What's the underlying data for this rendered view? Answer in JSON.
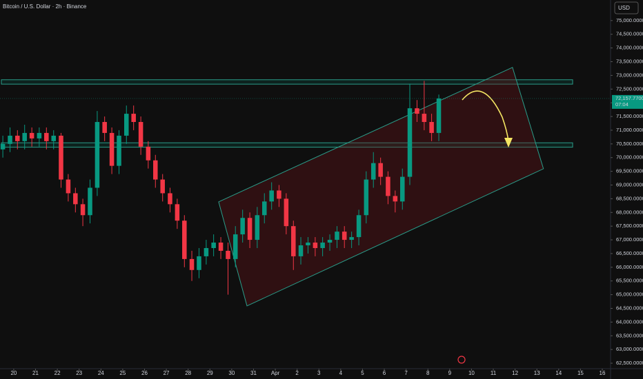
{
  "chart_data": {
    "type": "candlestick",
    "title": "Bitcoin / U.S. Dollar · 2h · Binance",
    "currency": "USD",
    "up_color": "#089981",
    "down_color": "#f23645",
    "grid": false,
    "xlim": [
      -0.63,
      27.38
    ],
    "ylim": [
      62300,
      75750
    ],
    "xticks": [
      {
        "value": 0,
        "label": "20"
      },
      {
        "value": 1,
        "label": "21"
      },
      {
        "value": 2,
        "label": "22"
      },
      {
        "value": 3,
        "label": "23"
      },
      {
        "value": 4,
        "label": "24"
      },
      {
        "value": 5,
        "label": "25"
      },
      {
        "value": 6,
        "label": "26"
      },
      {
        "value": 7,
        "label": "27"
      },
      {
        "value": 8,
        "label": "28"
      },
      {
        "value": 9,
        "label": "29"
      },
      {
        "value": 10,
        "label": "30"
      },
      {
        "value": 11,
        "label": "31"
      },
      {
        "value": 12,
        "label": "Apr"
      },
      {
        "value": 13,
        "label": "2"
      },
      {
        "value": 14,
        "label": "3"
      },
      {
        "value": 15,
        "label": "4"
      },
      {
        "value": 16,
        "label": "5"
      },
      {
        "value": 17,
        "label": "6"
      },
      {
        "value": 18,
        "label": "7"
      },
      {
        "value": 19,
        "label": "8"
      },
      {
        "value": 20,
        "label": "9"
      },
      {
        "value": 21,
        "label": "10"
      },
      {
        "value": 22,
        "label": "11"
      },
      {
        "value": 23,
        "label": "12"
      },
      {
        "value": 24,
        "label": "13"
      },
      {
        "value": 25,
        "label": "14"
      },
      {
        "value": 26,
        "label": "15"
      },
      {
        "value": 27,
        "label": "16"
      }
    ],
    "yticks": [
      {
        "value": 75000,
        "label": "75,000.0000"
      },
      {
        "value": 74500,
        "label": "74,500.0000"
      },
      {
        "value": 74000,
        "label": "74,000.0000"
      },
      {
        "value": 73500,
        "label": "73,500.0000"
      },
      {
        "value": 73000,
        "label": "73,000.0000"
      },
      {
        "value": 72500,
        "label": "72,500.0000"
      },
      {
        "value": 72000,
        "label": "72,000.0000"
      },
      {
        "value": 71500,
        "label": "71,500.0000"
      },
      {
        "value": 71000,
        "label": "71,000.0000"
      },
      {
        "value": 70500,
        "label": "70,500.0000"
      },
      {
        "value": 70000,
        "label": "70,000.0000"
      },
      {
        "value": 69500,
        "label": "69,500.0000"
      },
      {
        "value": 69000,
        "label": "69,000.0000"
      },
      {
        "value": 68500,
        "label": "68,500.0000"
      },
      {
        "value": 68000,
        "label": "68,000.0000"
      },
      {
        "value": 67500,
        "label": "67,500.0000"
      },
      {
        "value": 67000,
        "label": "67,000.0000"
      },
      {
        "value": 66500,
        "label": "66,500.0000"
      },
      {
        "value": 66000,
        "label": "66,000.0000"
      },
      {
        "value": 65500,
        "label": "65,500.0000"
      },
      {
        "value": 65000,
        "label": "65,000.0000"
      },
      {
        "value": 64500,
        "label": "64,500.0000"
      },
      {
        "value": 64000,
        "label": "64,000.0000"
      },
      {
        "value": 63500,
        "label": "63,500.0000"
      },
      {
        "value": 63000,
        "label": "63,000.0000"
      },
      {
        "value": 62500,
        "label": "62,500.0000"
      }
    ],
    "x": [
      -0.5,
      -0.17,
      0.17,
      0.5,
      0.83,
      1.17,
      1.5,
      1.83,
      2.17,
      2.5,
      2.83,
      3.17,
      3.5,
      3.83,
      4.17,
      4.5,
      4.83,
      5.17,
      5.5,
      5.83,
      6.17,
      6.5,
      6.83,
      7.17,
      7.5,
      7.83,
      8.17,
      8.5,
      8.83,
      9.17,
      9.5,
      9.83,
      10.17,
      10.5,
      10.83,
      11.17,
      11.5,
      11.83,
      12.17,
      12.5,
      12.83,
      13.17,
      13.5,
      13.83,
      14.17,
      14.5,
      14.83,
      15.17,
      15.5,
      15.83,
      16.17,
      16.5,
      16.83,
      17.17,
      17.5,
      17.83,
      18.17,
      18.5,
      18.83,
      19.17,
      19.5
    ],
    "open": [
      70300,
      70500,
      70800,
      70600,
      70900,
      70700,
      70900,
      70600,
      70800,
      69200,
      68700,
      68300,
      67900,
      68900,
      71300,
      70900,
      69700,
      70800,
      71600,
      71300,
      70400,
      69900,
      69200,
      68700,
      68300,
      67700,
      66300,
      65900,
      66400,
      66700,
      66900,
      66600,
      66300,
      67200,
      67800,
      67000,
      67900,
      68400,
      68800,
      68500,
      67500,
      66400,
      66800,
      66900,
      66700,
      66900,
      67000,
      67300,
      67000,
      67100,
      67900,
      69200,
      69800,
      69300,
      68600,
      68400,
      69300,
      71800,
      71600,
      71300,
      70900
    ],
    "high": [
      70800,
      71100,
      71000,
      71200,
      71100,
      71100,
      71100,
      71000,
      70900,
      69400,
      68900,
      68500,
      69200,
      71700,
      71500,
      71100,
      71000,
      71900,
      71900,
      71500,
      70600,
      70100,
      69400,
      68900,
      68500,
      67900,
      66600,
      66700,
      67000,
      67200,
      67100,
      66900,
      67500,
      68100,
      68000,
      68200,
      68700,
      69100,
      69000,
      68700,
      67700,
      67100,
      67100,
      67100,
      67100,
      67200,
      67500,
      67500,
      67300,
      68100,
      69500,
      70200,
      70000,
      69500,
      68800,
      69600,
      72700,
      72100,
      72800,
      71600,
      72300
    ],
    "low": [
      70000,
      70200,
      70300,
      70300,
      70400,
      70400,
      70300,
      70300,
      68900,
      68400,
      68000,
      67500,
      67600,
      68600,
      70600,
      69400,
      69400,
      70500,
      71000,
      70100,
      69600,
      68900,
      68400,
      68000,
      67400,
      66000,
      65500,
      65600,
      66100,
      66400,
      66300,
      65000,
      66000,
      66900,
      66700,
      66700,
      67600,
      68100,
      68200,
      67200,
      65900,
      66100,
      66500,
      66400,
      66400,
      66600,
      66700,
      66700,
      66700,
      66800,
      67600,
      68900,
      69000,
      68300,
      68000,
      68100,
      69000,
      71300,
      71000,
      70600,
      70600
    ],
    "close": [
      70500,
      70800,
      70600,
      70900,
      70700,
      70900,
      70600,
      70800,
      69200,
      68700,
      68300,
      67900,
      68900,
      71300,
      70900,
      69700,
      70800,
      71600,
      71300,
      70400,
      69900,
      69200,
      68700,
      68300,
      67700,
      66300,
      65900,
      66400,
      66700,
      66900,
      66600,
      66300,
      67200,
      67800,
      67000,
      67900,
      68400,
      68800,
      68500,
      67500,
      66400,
      66800,
      66900,
      66700,
      66900,
      67000,
      67300,
      67000,
      67100,
      67900,
      69200,
      69800,
      69300,
      68600,
      68400,
      69300,
      71800,
      71600,
      71300,
      70900,
      72157.77
    ],
    "last_price": {
      "value": 72157.77,
      "label": "72,157.7700"
    },
    "countdown": "07:04",
    "zones": [
      {
        "from": 72680,
        "to": 72840
      },
      {
        "from": 70380,
        "to": 70540
      }
    ],
    "channel": {
      "x": [
        9.4,
        22.88,
        24.3,
        10.7
      ],
      "y": [
        68386,
        73290,
        69593,
        64590
      ]
    }
  }
}
